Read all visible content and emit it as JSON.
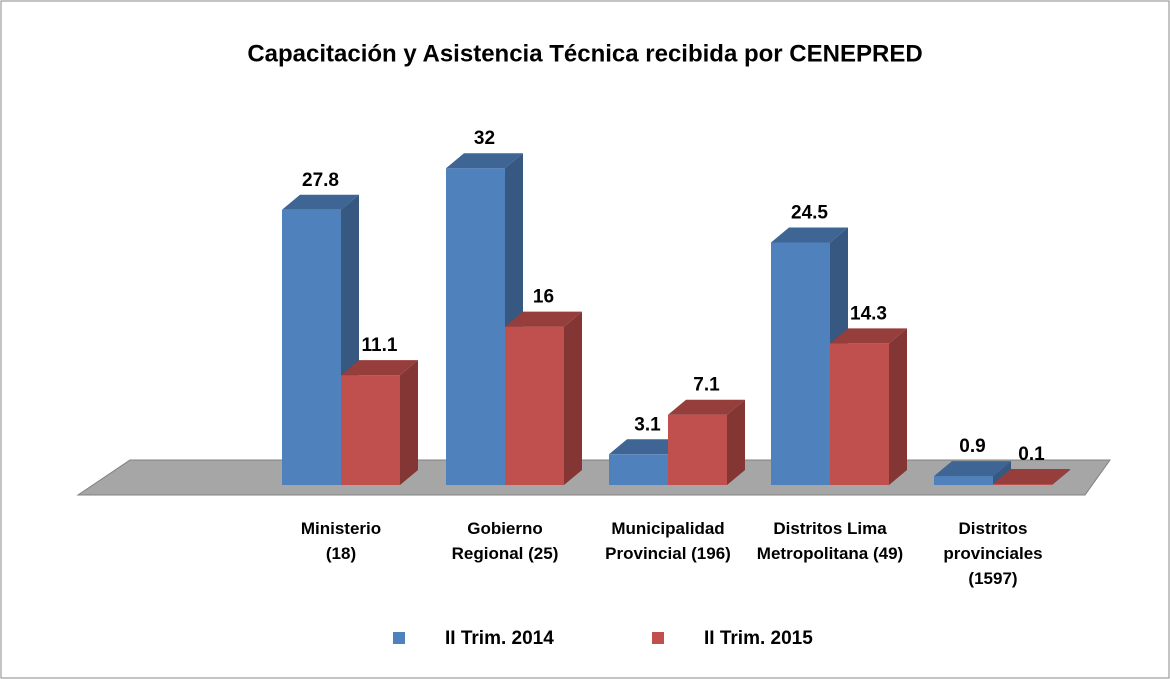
{
  "chart_data": {
    "type": "bar3d",
    "title": "Capacitación y Asistencia Técnica recibida por CENEPRED",
    "categories": [
      "Ministerio (18)",
      "Gobierno Regional (25)",
      "Municipalidad Provincial (196)",
      "Distritos Lima Metropolitana (49)",
      "Distritos provinciales (1597)"
    ],
    "series": [
      {
        "name": "II Trim. 2014",
        "color": "#4f81bd",
        "values": [
          27.8,
          32,
          3.1,
          24.5,
          0.9
        ]
      },
      {
        "name": "II Trim. 2015",
        "color": "#c0504d",
        "values": [
          11.1,
          16,
          7.1,
          14.3,
          0.1
        ]
      }
    ],
    "legend": "bottom"
  }
}
